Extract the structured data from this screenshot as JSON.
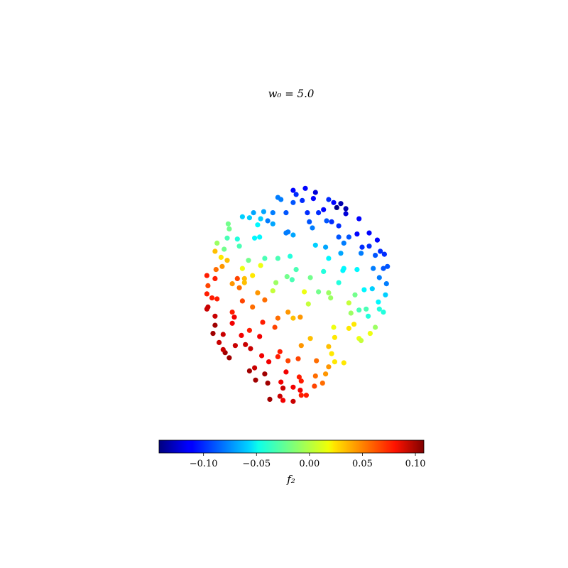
{
  "chart_data": {
    "type": "scatter",
    "title": "w₀ = 5.0",
    "xlabel": "",
    "ylabel": "",
    "axes_visible": false,
    "xlim": [
      -1.05,
      1.05
    ],
    "ylim": [
      -1.05,
      1.05
    ],
    "colormap": "jet",
    "colorbar": {
      "label": "f₂",
      "range": [
        -0.142,
        0.108
      ],
      "ticks": [
        -0.1,
        -0.05,
        0.0,
        0.05,
        0.1
      ],
      "tick_labels": [
        "−0.10",
        "−0.05",
        "0.00",
        "0.05",
        "0.10"
      ],
      "orientation": "horizontal",
      "placement": "bottom"
    },
    "points": [
      {
        "x": -0.05,
        "y": 1.0,
        "c": -0.11
      },
      {
        "x": 0.07,
        "y": 1.02,
        "c": -0.11
      },
      {
        "x": 0.17,
        "y": 0.98,
        "c": -0.12
      },
      {
        "x": 0.15,
        "y": 0.92,
        "c": -0.11
      },
      {
        "x": 0.42,
        "y": 0.87,
        "c": -0.13
      },
      {
        "x": 0.38,
        "y": 0.83,
        "c": -0.14
      },
      {
        "x": 0.47,
        "y": 0.82,
        "c": -0.13
      },
      {
        "x": 0.47,
        "y": 0.77,
        "c": -0.12
      },
      {
        "x": 0.6,
        "y": 0.72,
        "c": -0.11
      },
      {
        "x": 0.7,
        "y": 0.58,
        "c": -0.11
      },
      {
        "x": 0.78,
        "y": 0.51,
        "c": -0.11
      },
      {
        "x": 0.58,
        "y": 0.57,
        "c": -0.11
      },
      {
        "x": 0.7,
        "y": 0.45,
        "c": -0.1
      },
      {
        "x": 0.63,
        "y": 0.44,
        "c": -0.1
      },
      {
        "x": 0.85,
        "y": 0.37,
        "c": -0.1
      },
      {
        "x": 0.81,
        "y": 0.4,
        "c": -0.1
      },
      {
        "x": 0.76,
        "y": 0.36,
        "c": -0.09
      },
      {
        "x": 0.3,
        "y": 0.91,
        "c": -0.1
      },
      {
        "x": 0.35,
        "y": 0.88,
        "c": -0.11
      },
      {
        "x": 0.25,
        "y": 0.81,
        "c": -0.11
      },
      {
        "x": 0.2,
        "y": 0.78,
        "c": -0.1
      },
      {
        "x": 0.04,
        "y": 0.9,
        "c": -0.1
      },
      {
        "x": -0.02,
        "y": 0.96,
        "c": -0.1
      },
      {
        "x": -0.05,
        "y": 0.88,
        "c": -0.09
      },
      {
        "x": 0.09,
        "y": 0.78,
        "c": -0.1
      },
      {
        "x": 0.28,
        "y": 0.7,
        "c": -0.09
      },
      {
        "x": 0.33,
        "y": 0.69,
        "c": -0.1
      },
      {
        "x": 0.4,
        "y": 0.65,
        "c": -0.1
      },
      {
        "x": 0.4,
        "y": 0.54,
        "c": -0.09
      },
      {
        "x": 0.5,
        "y": 0.54,
        "c": -0.09
      },
      {
        "x": 0.62,
        "y": 0.38,
        "c": -0.08
      },
      {
        "x": 0.74,
        "y": 0.23,
        "c": -0.08
      },
      {
        "x": 0.84,
        "y": 0.23,
        "c": -0.09
      },
      {
        "x": 0.88,
        "y": 0.25,
        "c": -0.09
      },
      {
        "x": 0.8,
        "y": 0.14,
        "c": -0.08
      },
      {
        "x": 0.87,
        "y": 0.08,
        "c": -0.08
      },
      {
        "x": 0.45,
        "y": 0.48,
        "c": -0.08
      },
      {
        "x": 0.42,
        "y": 0.38,
        "c": -0.07
      },
      {
        "x": 0.27,
        "y": 0.44,
        "c": -0.07
      },
      {
        "x": 0.14,
        "y": 0.63,
        "c": -0.08
      },
      {
        "x": 0.11,
        "y": 0.69,
        "c": -0.09
      },
      {
        "x": -0.12,
        "y": 0.78,
        "c": -0.09
      },
      {
        "x": -0.17,
        "y": 0.91,
        "c": -0.08
      },
      {
        "x": -0.2,
        "y": 0.93,
        "c": -0.08
      },
      {
        "x": -0.25,
        "y": 0.78,
        "c": -0.08
      },
      {
        "x": -0.3,
        "y": 0.7,
        "c": -0.08
      },
      {
        "x": -0.25,
        "y": 0.67,
        "c": -0.07
      },
      {
        "x": -0.05,
        "y": 0.56,
        "c": -0.07
      },
      {
        "x": -0.1,
        "y": 0.59,
        "c": -0.08
      },
      {
        "x": -0.12,
        "y": 0.58,
        "c": -0.08
      },
      {
        "x": 0.17,
        "y": 0.46,
        "c": -0.06
      },
      {
        "x": 0.3,
        "y": 0.33,
        "c": -0.05
      },
      {
        "x": 0.45,
        "y": 0.23,
        "c": -0.05
      },
      {
        "x": 0.58,
        "y": 0.22,
        "c": -0.05
      },
      {
        "x": 0.73,
        "y": 0.03,
        "c": -0.06
      },
      {
        "x": 0.79,
        "y": -0.1,
        "c": -0.05
      },
      {
        "x": 0.65,
        "y": 0.02,
        "c": -0.05
      },
      {
        "x": 0.86,
        "y": -0.03,
        "c": -0.06
      },
      {
        "x": 0.8,
        "y": -0.17,
        "c": -0.04
      },
      {
        "x": 0.84,
        "y": -0.2,
        "c": -0.04
      },
      {
        "x": 0.67,
        "y": -0.17,
        "c": -0.03
      },
      {
        "x": 0.69,
        "y": -0.24,
        "c": -0.04
      },
      {
        "x": 0.6,
        "y": -0.18,
        "c": -0.03
      },
      {
        "x": 0.44,
        "y": 0.21,
        "c": -0.05
      },
      {
        "x": 0.4,
        "y": 0.09,
        "c": -0.04
      },
      {
        "x": 0.25,
        "y": 0.2,
        "c": -0.04
      },
      {
        "x": -0.34,
        "y": 0.79,
        "c": -0.07
      },
      {
        "x": -0.44,
        "y": 0.78,
        "c": -0.07
      },
      {
        "x": -0.48,
        "y": 0.73,
        "c": -0.06
      },
      {
        "x": -0.55,
        "y": 0.74,
        "c": -0.06
      },
      {
        "x": -0.37,
        "y": 0.72,
        "c": -0.06
      },
      {
        "x": -0.4,
        "y": 0.66,
        "c": -0.05
      },
      {
        "x": -0.43,
        "y": 0.53,
        "c": -0.05
      },
      {
        "x": -0.38,
        "y": 0.54,
        "c": -0.05
      },
      {
        "x": -0.6,
        "y": 0.52,
        "c": -0.04
      },
      {
        "x": -0.7,
        "y": 0.53,
        "c": -0.03
      },
      {
        "x": -0.68,
        "y": 0.62,
        "c": -0.02
      },
      {
        "x": -0.69,
        "y": 0.67,
        "c": -0.02
      },
      {
        "x": -0.58,
        "y": 0.45,
        "c": -0.03
      },
      {
        "x": -0.8,
        "y": 0.48,
        "c": -0.01
      },
      {
        "x": -0.73,
        "y": 0.42,
        "c": -0.02
      },
      {
        "x": -0.49,
        "y": 0.31,
        "c": -0.02
      },
      {
        "x": -0.33,
        "y": 0.33,
        "c": -0.03
      },
      {
        "x": -0.2,
        "y": 0.33,
        "c": -0.03
      },
      {
        "x": -0.08,
        "y": 0.35,
        "c": -0.04
      },
      {
        "x": -0.11,
        "y": 0.15,
        "c": -0.02
      },
      {
        "x": -0.02,
        "y": 0.22,
        "c": -0.03
      },
      {
        "x": -0.06,
        "y": 0.12,
        "c": -0.03
      },
      {
        "x": 0.12,
        "y": 0.14,
        "c": -0.02
      },
      {
        "x": 0.2,
        "y": 0.0,
        "c": -0.02
      },
      {
        "x": 0.3,
        "y": -0.01,
        "c": -0.01
      },
      {
        "x": 0.32,
        "y": -0.06,
        "c": -0.01
      },
      {
        "x": 0.52,
        "y": -0.21,
        "c": -0.01
      },
      {
        "x": 0.56,
        "y": -0.03,
        "c": -0.02
      },
      {
        "x": 0.5,
        "y": -0.11,
        "c": 0.0
      },
      {
        "x": 0.55,
        "y": -0.32,
        "c": 0.02
      },
      {
        "x": 0.6,
        "y": -0.46,
        "c": 0.01
      },
      {
        "x": 0.62,
        "y": -0.48,
        "c": 0.0
      },
      {
        "x": 0.71,
        "y": -0.41,
        "c": 0.01
      },
      {
        "x": 0.76,
        "y": -0.35,
        "c": -0.01
      },
      {
        "x": 0.5,
        "y": -0.36,
        "c": 0.02
      },
      {
        "x": 0.35,
        "y": -0.35,
        "c": 0.01
      },
      {
        "x": 0.1,
        "y": -0.12,
        "c": 0.0
      },
      {
        "x": 0.06,
        "y": 0.0,
        "c": 0.01
      },
      {
        "x": -0.25,
        "y": 0.01,
        "c": 0.0
      },
      {
        "x": -0.22,
        "y": 0.09,
        "c": -0.01
      },
      {
        "x": -0.53,
        "y": 0.13,
        "c": 0.03
      },
      {
        "x": -0.37,
        "y": 0.26,
        "c": 0.01
      },
      {
        "x": -0.45,
        "y": 0.16,
        "c": 0.02
      },
      {
        "x": -0.55,
        "y": 0.23,
        "c": 0.01
      },
      {
        "x": -0.7,
        "y": 0.31,
        "c": 0.03
      },
      {
        "x": -0.76,
        "y": 0.34,
        "c": 0.02
      },
      {
        "x": -0.82,
        "y": 0.4,
        "c": 0.03
      },
      {
        "x": -0.75,
        "y": 0.25,
        "c": 0.04
      },
      {
        "x": -0.81,
        "y": 0.22,
        "c": 0.05
      },
      {
        "x": -0.65,
        "y": 0.08,
        "c": 0.04
      },
      {
        "x": -0.6,
        "y": 0.13,
        "c": 0.06
      },
      {
        "x": -0.53,
        "y": 0.09,
        "c": 0.03
      },
      {
        "x": -0.58,
        "y": 0.04,
        "c": 0.05
      },
      {
        "x": -0.82,
        "y": 0.13,
        "c": 0.07
      },
      {
        "x": -0.9,
        "y": 0.16,
        "c": 0.07
      },
      {
        "x": -0.89,
        "y": 0.06,
        "c": 0.06
      },
      {
        "x": -0.9,
        "y": -0.02,
        "c": 0.07
      },
      {
        "x": -0.85,
        "y": -0.06,
        "c": 0.07
      },
      {
        "x": -0.8,
        "y": -0.07,
        "c": 0.07
      },
      {
        "x": -0.89,
        "y": -0.15,
        "c": 0.09
      },
      {
        "x": -0.9,
        "y": -0.17,
        "c": 0.09
      },
      {
        "x": -0.82,
        "y": -0.24,
        "c": 0.09
      },
      {
        "x": -0.65,
        "y": -0.2,
        "c": 0.07
      },
      {
        "x": -0.55,
        "y": -0.09,
        "c": 0.06
      },
      {
        "x": -0.45,
        "y": -0.15,
        "c": 0.05
      },
      {
        "x": -0.4,
        "y": -0.01,
        "c": 0.04
      },
      {
        "x": -0.33,
        "y": -0.08,
        "c": 0.05
      },
      {
        "x": -0.2,
        "y": -0.26,
        "c": 0.05
      },
      {
        "x": -0.1,
        "y": -0.2,
        "c": 0.04
      },
      {
        "x": -0.05,
        "y": -0.26,
        "c": 0.03
      },
      {
        "x": 0.02,
        "y": -0.25,
        "c": 0.04
      },
      {
        "x": -0.23,
        "y": -0.35,
        "c": 0.06
      },
      {
        "x": -0.35,
        "y": -0.3,
        "c": 0.07
      },
      {
        "x": -0.38,
        "y": -0.44,
        "c": 0.08
      },
      {
        "x": -0.48,
        "y": -0.38,
        "c": 0.07
      },
      {
        "x": -0.63,
        "y": -0.25,
        "c": 0.08
      },
      {
        "x": -0.65,
        "y": -0.31,
        "c": 0.08
      },
      {
        "x": -0.82,
        "y": -0.33,
        "c": 0.1
      },
      {
        "x": -0.74,
        "y": -0.42,
        "c": 0.09
      },
      {
        "x": -0.84,
        "y": -0.41,
        "c": 0.1
      },
      {
        "x": -0.78,
        "y": -0.5,
        "c": 0.09
      },
      {
        "x": -0.72,
        "y": -0.6,
        "c": 0.1
      },
      {
        "x": -0.62,
        "y": -0.53,
        "c": 0.09
      },
      {
        "x": -0.56,
        "y": -0.43,
        "c": 0.08
      },
      {
        "x": -0.52,
        "y": -0.52,
        "c": 0.09
      },
      {
        "x": -0.68,
        "y": -0.65,
        "c": 0.1
      },
      {
        "x": -0.74,
        "y": -0.57,
        "c": 0.09
      },
      {
        "x": -0.47,
        "y": -0.56,
        "c": 0.09
      },
      {
        "x": -0.36,
        "y": -0.63,
        "c": 0.08
      },
      {
        "x": -0.29,
        "y": -0.69,
        "c": 0.08
      },
      {
        "x": -0.43,
        "y": -0.75,
        "c": 0.09
      },
      {
        "x": -0.48,
        "y": -0.78,
        "c": 0.1
      },
      {
        "x": -0.33,
        "y": -0.81,
        "c": 0.1
      },
      {
        "x": -0.42,
        "y": -0.87,
        "c": 0.1
      },
      {
        "x": -0.3,
        "y": -0.9,
        "c": 0.1
      },
      {
        "x": -0.18,
        "y": -0.59,
        "c": 0.07
      },
      {
        "x": -0.2,
        "y": -0.64,
        "c": 0.07
      },
      {
        "x": -0.1,
        "y": -0.68,
        "c": 0.06
      },
      {
        "x": -0.12,
        "y": -0.79,
        "c": 0.08
      },
      {
        "x": -0.17,
        "y": -0.89,
        "c": 0.08
      },
      {
        "x": -0.15,
        "y": -0.95,
        "c": 0.09
      },
      {
        "x": -0.05,
        "y": -0.94,
        "c": 0.08
      },
      {
        "x": 0.02,
        "y": -0.97,
        "c": 0.08
      },
      {
        "x": 0.03,
        "y": -0.88,
        "c": 0.07
      },
      {
        "x": 0.01,
        "y": -0.84,
        "c": 0.07
      },
      {
        "x": 0.17,
        "y": -0.83,
        "c": 0.05
      },
      {
        "x": 0.27,
        "y": -0.81,
        "c": 0.04
      },
      {
        "x": 0.3,
        "y": -0.74,
        "c": 0.04
      },
      {
        "x": 0.18,
        "y": -0.68,
        "c": 0.05
      },
      {
        "x": 0.0,
        "y": -0.66,
        "c": 0.06
      },
      {
        "x": 0.03,
        "y": -0.53,
        "c": 0.04
      },
      {
        "x": 0.12,
        "y": -0.46,
        "c": 0.03
      },
      {
        "x": 0.3,
        "y": -0.54,
        "c": 0.03
      },
      {
        "x": 0.33,
        "y": -0.61,
        "c": 0.02
      },
      {
        "x": 0.36,
        "y": -0.69,
        "c": 0.02
      },
      {
        "x": 0.36,
        "y": -0.45,
        "c": 0.02
      },
      {
        "x": 0.45,
        "y": -0.7,
        "c": 0.02
      },
      {
        "x": 0.16,
        "y": -0.93,
        "c": 0.06
      },
      {
        "x": 0.24,
        "y": -0.9,
        "c": 0.05
      },
      {
        "x": 0.08,
        "y": -1.02,
        "c": 0.07
      },
      {
        "x": -0.18,
        "y": -1.03,
        "c": 0.09
      },
      {
        "x": -0.28,
        "y": -1.06,
        "c": 0.1
      },
      {
        "x": -0.05,
        "y": -1.08,
        "c": 0.09
      },
      {
        "x": -0.15,
        "y": -1.07,
        "c": 0.08
      },
      {
        "x": 0.03,
        "y": -1.02,
        "c": 0.07
      }
    ]
  }
}
